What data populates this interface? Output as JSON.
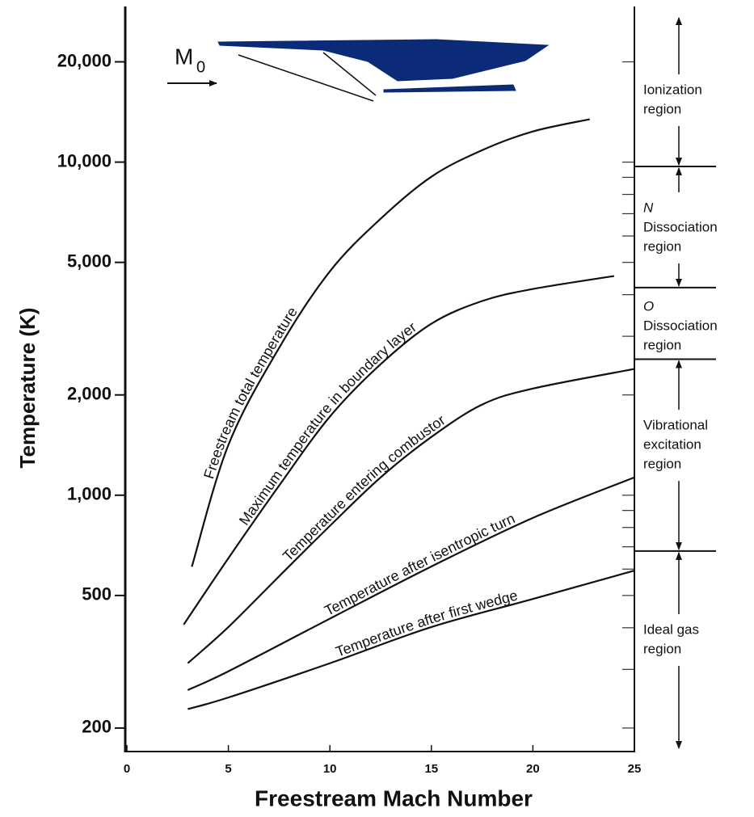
{
  "chart_data": {
    "type": "line",
    "x_label": "Freestream Mach Number",
    "y_label": "Temperature (K)",
    "xlim": [
      0,
      25
    ],
    "ylim": [
      170,
      29000
    ],
    "log_y": true,
    "xticks": [
      0,
      5,
      10,
      15,
      20,
      25
    ],
    "yticks": [
      200,
      500,
      {
        "value": 1000,
        "label": "1,000"
      },
      {
        "value": 2000,
        "label": "2,000"
      },
      {
        "value": 5000,
        "label": "5,000"
      },
      {
        "value": 10000,
        "label": "10,000"
      },
      {
        "value": 20000,
        "label": "20,000"
      }
    ],
    "right_axis_ticks": [
      200,
      300,
      400,
      500,
      600,
      700,
      800,
      900,
      1000,
      2000,
      3000,
      4000,
      5000,
      6000,
      7000,
      8000,
      9000,
      10000,
      20000
    ],
    "series": [
      {
        "name": "Freestream total temperature",
        "color": "#111111",
        "x": [
          3.2,
          5,
          7.5,
          10,
          12.5,
          15,
          17.5,
          20,
          22.8
        ],
        "values": [
          610,
          1415,
          2770,
          4700,
          6760,
          9040,
          10860,
          12360,
          13450
        ]
      },
      {
        "name": "Maximum temperature in boundary layer",
        "color": "#111111",
        "x": [
          2.8,
          5,
          7.5,
          10,
          12.5,
          15,
          17.5,
          20,
          24
        ],
        "values": [
          409,
          647,
          1069,
          1722,
          2473,
          3273,
          3828,
          4160,
          4550
        ]
      },
      {
        "name": "Temperature entering combustor",
        "color": "#111111",
        "x": [
          3,
          5,
          7.5,
          10,
          12.5,
          15,
          17.5,
          20,
          25
        ],
        "values": [
          313,
          402,
          571,
          809,
          1131,
          1496,
          1871,
          2090,
          2393
        ]
      },
      {
        "name": "Temperature after isentropic turn",
        "color": "#111111",
        "x": [
          3,
          5,
          10,
          15,
          20,
          25
        ],
        "values": [
          260,
          296,
          426,
          611,
          855,
          1131
        ]
      },
      {
        "name": "Temperature after first wedge",
        "color": "#111111",
        "x": [
          3,
          5,
          10,
          15,
          20,
          25
        ],
        "values": [
          228,
          247,
          313,
          402,
          488,
          594
        ]
      }
    ],
    "region_boundaries": [
      9700,
      4200,
      2560,
      680
    ],
    "regions": [
      {
        "lines": [
          "Ionization",
          "region"
        ]
      },
      {
        "lines": [
          "N",
          "Dissociation",
          "region"
        ]
      },
      {
        "lines": [
          "O",
          "Dissociation",
          "region"
        ]
      },
      {
        "lines": [
          "Vibrational",
          "excitation",
          "region"
        ]
      },
      {
        "lines": [
          "Ideal gas",
          "region"
        ]
      }
    ],
    "inlet_label": {
      "text": "M",
      "subscript": "0"
    }
  }
}
